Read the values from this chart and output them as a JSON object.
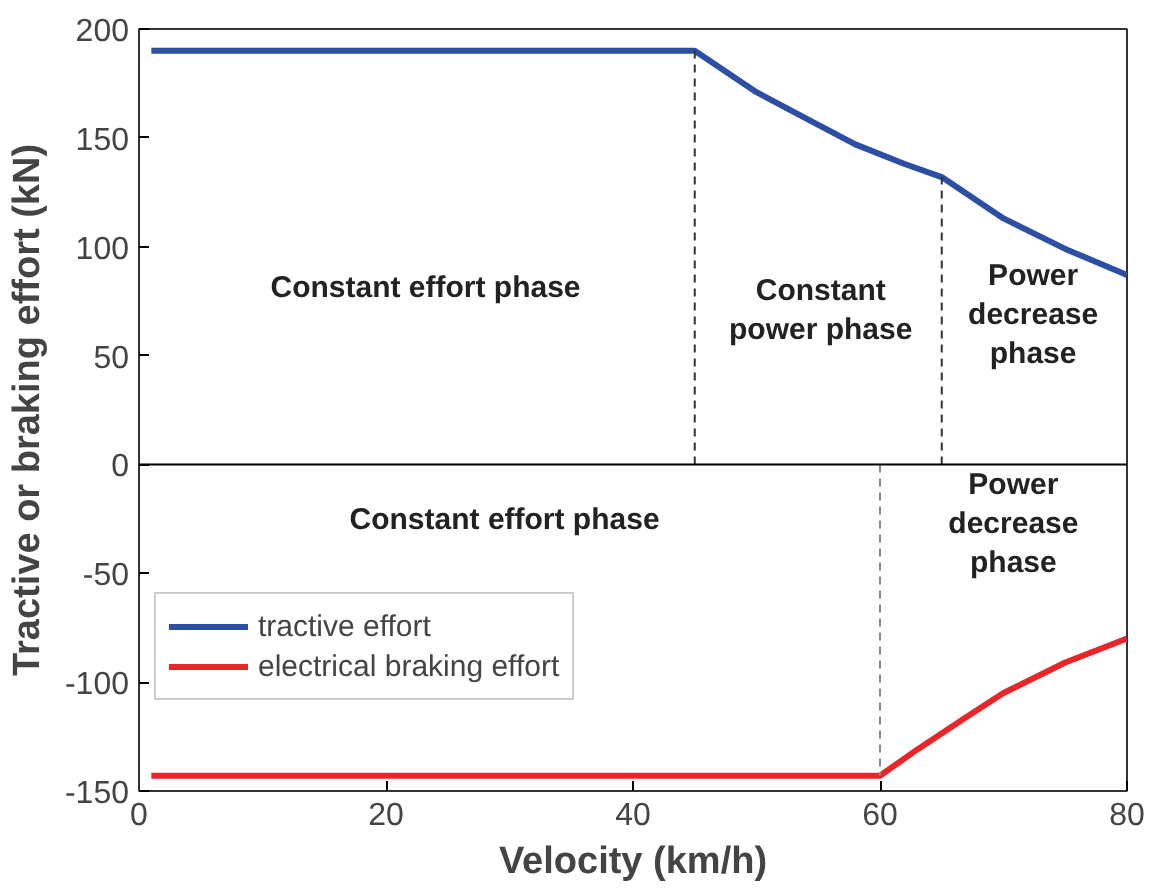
{
  "chart_data": {
    "type": "line",
    "xlabel": "Velocity (km/h)",
    "ylabel": "Tractive or braking effort (kN)",
    "xlim": [
      0,
      80
    ],
    "ylim": [
      -150,
      200
    ],
    "xticks": [
      0,
      20,
      40,
      60,
      80
    ],
    "yticks": [
      -150,
      -100,
      -50,
      0,
      50,
      100,
      150,
      200
    ],
    "grid": false,
    "legend": "bottom left",
    "line_style": "solid",
    "marker": "none",
    "series": [
      {
        "name": "tractive effort",
        "color": "#2c4ea3",
        "x": [
          1,
          45,
          50,
          55,
          58,
          62,
          65,
          70,
          75,
          80
        ],
        "values": [
          190,
          190,
          171,
          156,
          147,
          138,
          132,
          113,
          99,
          87
        ]
      },
      {
        "name": "electrical braking effort",
        "color": "#e8262a",
        "x": [
          1,
          60,
          63,
          67,
          70,
          75,
          80
        ],
        "values": [
          -143,
          -143,
          -131,
          -116,
          -105,
          -91,
          -80
        ]
      }
    ],
    "ref_lines": [
      {
        "axis": "y",
        "value": 0,
        "color": "#000000",
        "line_style": "solid"
      },
      {
        "axis": "x",
        "value": 45,
        "color": "#333333",
        "line_style": "dashed"
      },
      {
        "axis": "x",
        "value": 65,
        "color": "#333333",
        "line_style": "dashed"
      },
      {
        "axis": "x",
        "value": 60,
        "color": "#888888",
        "line_style": "dashed"
      }
    ],
    "annotations": [
      "Constant effort phase",
      "Constant\npower phase",
      "Power\ndecrease\nphase",
      "Constant effort phase",
      "Power\ndecrease\nphase"
    ]
  }
}
